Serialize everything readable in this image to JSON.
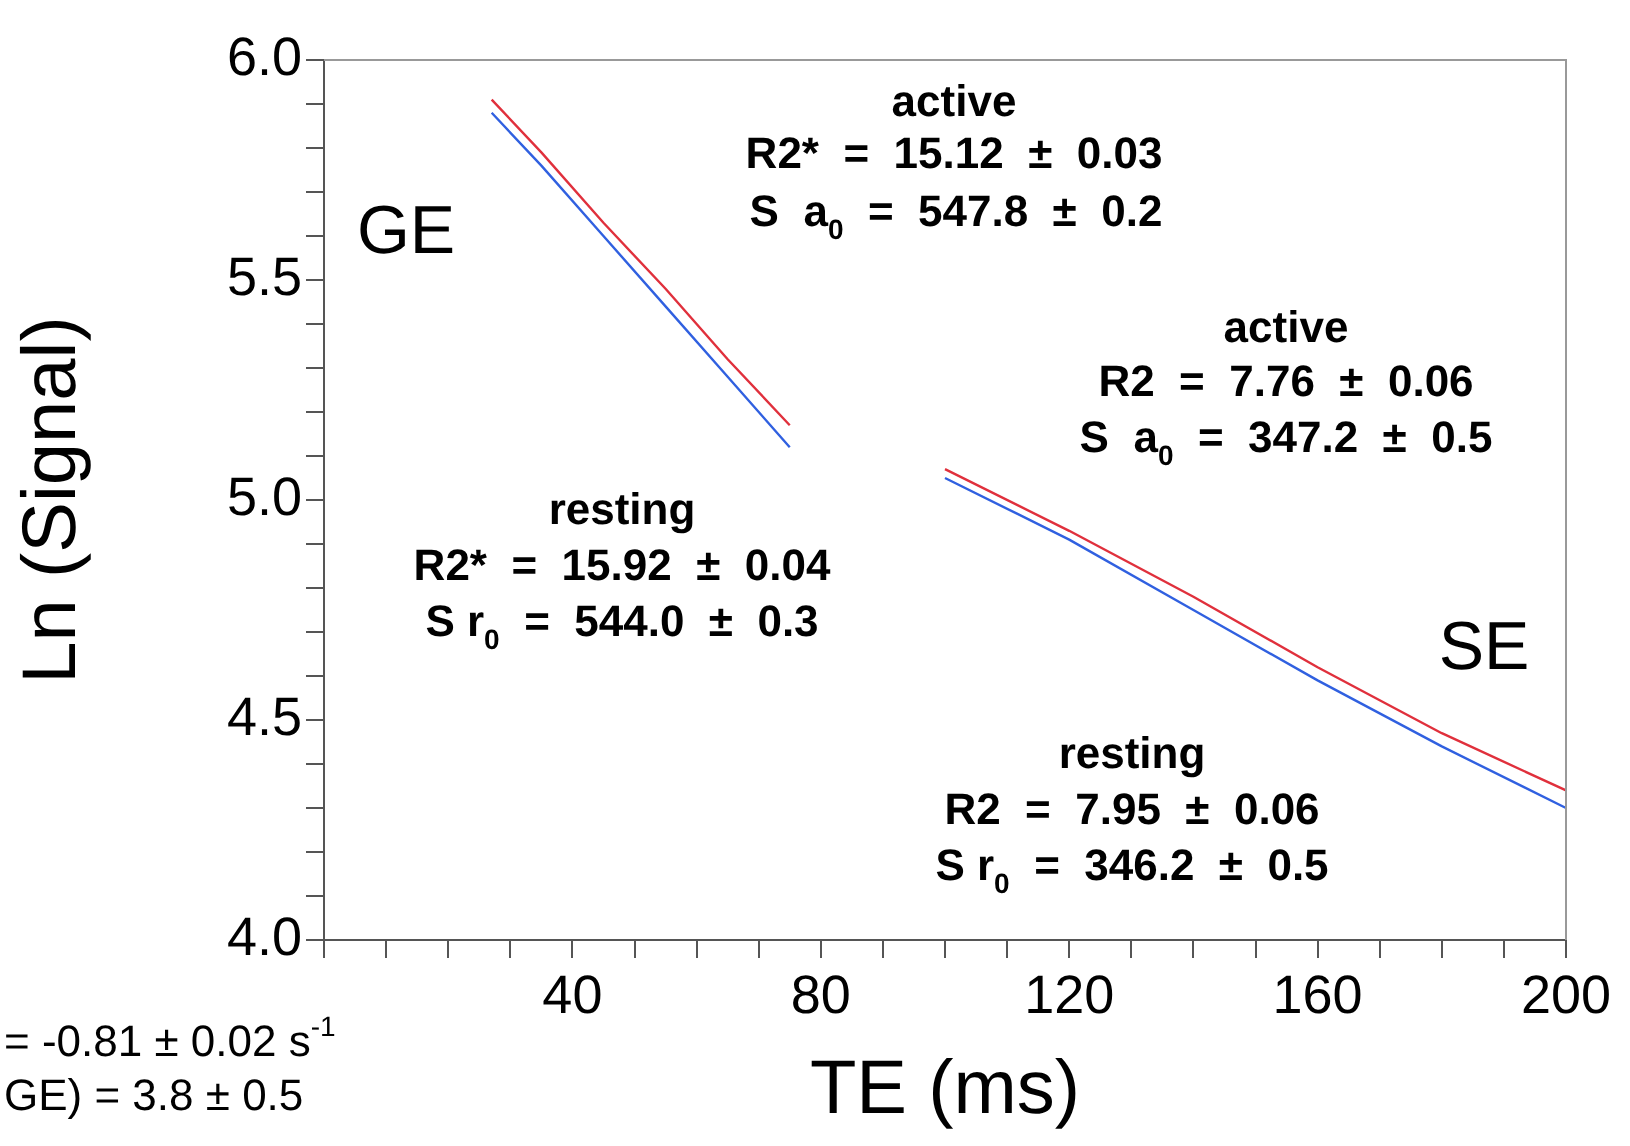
{
  "chart_data": {
    "type": "line",
    "xlabel": "TE (ms)",
    "ylabel": "Ln (Signal)",
    "xlim": [
      0,
      200
    ],
    "ylim": [
      4,
      6
    ],
    "xticks": [
      {
        "value": 0,
        "label": null
      },
      {
        "value": 10,
        "label": null
      },
      {
        "value": 20,
        "label": null
      },
      {
        "value": 30,
        "label": null
      },
      40,
      {
        "value": 50,
        "label": null
      },
      {
        "value": 60,
        "label": null
      },
      {
        "value": 70,
        "label": null
      },
      80,
      {
        "value": 90,
        "label": null
      },
      {
        "value": 100,
        "label": null
      },
      {
        "value": 110,
        "label": null
      },
      120,
      {
        "value": 130,
        "label": null
      },
      {
        "value": 140,
        "label": null
      },
      {
        "value": 150,
        "label": null
      },
      160,
      {
        "value": 170,
        "label": null
      },
      {
        "value": 180,
        "label": null
      },
      {
        "value": 190,
        "label": null
      },
      200
    ],
    "yticks": [
      {
        "value": 4,
        "label": "4.0"
      },
      {
        "value": 4.1,
        "label": null
      },
      {
        "value": 4.2,
        "label": null
      },
      {
        "value": 4.3,
        "label": null
      },
      {
        "value": 4.4,
        "label": null
      },
      4.5,
      {
        "value": 4.6,
        "label": null
      },
      {
        "value": 4.7,
        "label": null
      },
      {
        "value": 4.8,
        "label": null
      },
      {
        "value": 4.9,
        "label": null
      },
      {
        "value": 5,
        "label": "5.0"
      },
      {
        "value": 5.1,
        "label": null
      },
      {
        "value": 5.2,
        "label": null
      },
      {
        "value": 5.3,
        "label": null
      },
      {
        "value": 5.4,
        "label": null
      },
      5.5,
      {
        "value": 5.6,
        "label": null
      },
      {
        "value": 5.7,
        "label": null
      },
      {
        "value": 5.8,
        "label": null
      },
      {
        "value": 5.9,
        "label": null
      },
      {
        "value": 6,
        "label": "6.0"
      }
    ],
    "grid": false,
    "legend": false,
    "marker": "none",
    "line_style": "solid",
    "series": [
      {
        "color": "#e0303c",
        "x": [
          27,
          35,
          45,
          55,
          65,
          75
        ],
        "values": [
          5.91,
          5.79,
          5.63,
          5.48,
          5.32,
          5.17
        ]
      },
      {
        "color": "#3060e0",
        "x": [
          27,
          35,
          45,
          55,
          65,
          75
        ],
        "values": [
          5.88,
          5.76,
          5.6,
          5.44,
          5.28,
          5.12
        ]
      },
      {
        "color": "#e0303c",
        "x": [
          100,
          120,
          140,
          160,
          180,
          200
        ],
        "values": [
          5.07,
          4.93,
          4.78,
          4.62,
          4.47,
          4.34
        ]
      },
      {
        "color": "#3060e0",
        "x": [
          100,
          120,
          140,
          160,
          180,
          200
        ],
        "values": [
          5.05,
          4.91,
          4.75,
          4.59,
          4.44,
          4.3
        ]
      }
    ],
    "annotations": [
      "GE",
      "active",
      "R2*  =  15.12  ±  0.03",
      "S  a$_{0}$  =  547.8  ±  0.2",
      "active",
      "R2  =  7.76  ±  0.06",
      "S  a$_{0}$  =  347.2  ±  0.5",
      "resting",
      "R2*  =  15.92  ±  0.04",
      "S r$_{0}$  =  544.0  ±  0.3",
      "SE",
      "resting",
      "R2  =  7.95  ±  0.06",
      "S r$_{0}$  =  346.2  ±  0.5",
      "= -0.81 ± 0.02 s$^{-1}$",
      "GE) = 3.8 ± 0.5"
    ]
  }
}
